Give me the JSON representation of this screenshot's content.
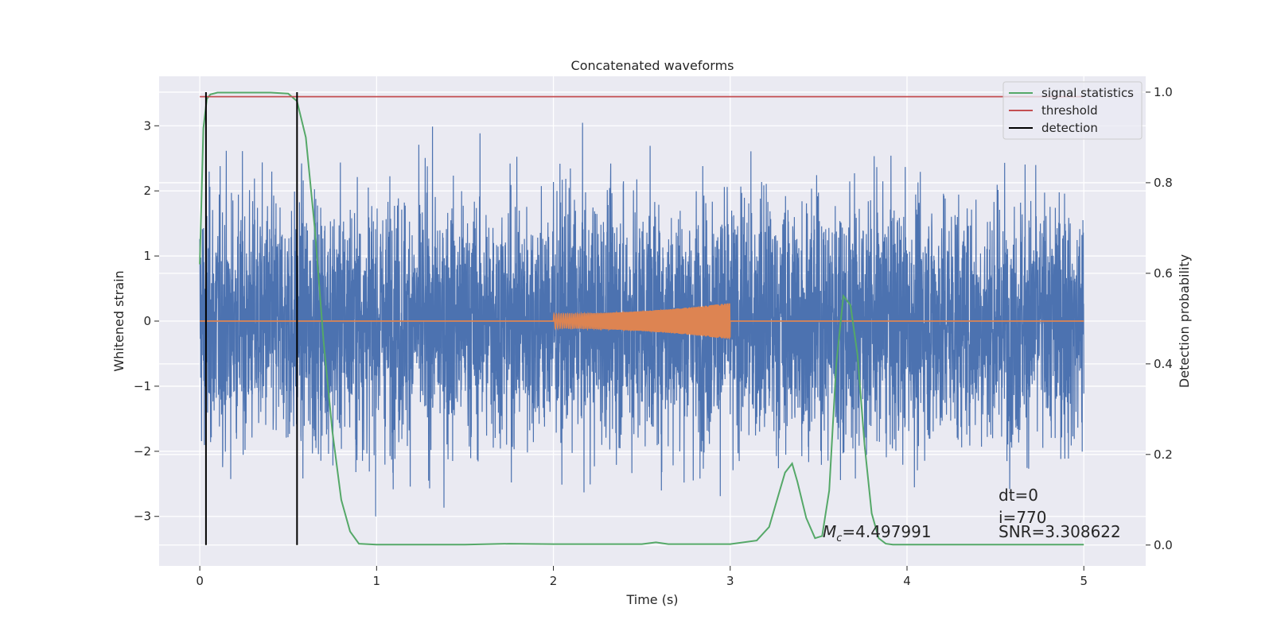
{
  "chart_data": {
    "type": "line",
    "title": "Concatenated waveforms",
    "xlabel": "Time (s)",
    "ylabel_left": "Whitened strain",
    "ylabel_right": "Detection probability",
    "xlim": [
      -0.23,
      5.35
    ],
    "ylim_left": [
      -3.76,
      3.76
    ],
    "ylim_right": [
      -0.046,
      1.035
    ],
    "x_ticks": [
      0,
      1,
      2,
      3,
      4,
      5
    ],
    "y_ticks_left": [
      -3,
      -2,
      -1,
      0,
      1,
      2,
      3
    ],
    "y_ticks_left_labels": [
      "−3",
      "−2",
      "−1",
      "0",
      "1",
      "2",
      "3"
    ],
    "y_ticks_right": [
      0.0,
      0.2,
      0.4,
      0.6,
      0.8,
      1.0
    ],
    "y_ticks_right_labels": [
      "0.0",
      "0.2",
      "0.4",
      "0.6",
      "0.8",
      "1.0"
    ],
    "grid": true,
    "legend_position": "top-right",
    "colors": {
      "strain": "#4c72b0",
      "injection": "#dd8452",
      "signal_statistics": "#55a868",
      "threshold": "#c44e52",
      "detection": "#000000",
      "background": "#eaeaf2",
      "grid": "#ffffff"
    },
    "series": [
      {
        "name": "signal statistics",
        "axis": "right",
        "x": [
          0.0,
          0.02,
          0.04,
          0.06,
          0.1,
          0.2,
          0.3,
          0.4,
          0.5,
          0.55,
          0.6,
          0.65,
          0.7,
          0.75,
          0.8,
          0.85,
          0.9,
          1.0,
          1.5,
          1.75,
          2.0,
          2.5,
          2.58,
          2.65,
          3.0,
          3.15,
          3.22,
          3.28,
          3.31,
          3.35,
          3.38,
          3.43,
          3.48,
          3.52,
          3.56,
          3.6,
          3.64,
          3.68,
          3.72,
          3.76,
          3.8,
          3.84,
          3.88,
          3.92,
          4.0,
          4.5,
          5.0
        ],
        "y": [
          0.62,
          0.92,
          0.985,
          0.995,
          0.999,
          0.999,
          0.999,
          0.999,
          0.997,
          0.98,
          0.9,
          0.7,
          0.45,
          0.25,
          0.1,
          0.03,
          0.003,
          0.001,
          0.001,
          0.003,
          0.002,
          0.002,
          0.006,
          0.002,
          0.002,
          0.01,
          0.04,
          0.12,
          0.16,
          0.18,
          0.14,
          0.06,
          0.015,
          0.02,
          0.12,
          0.4,
          0.55,
          0.53,
          0.42,
          0.22,
          0.07,
          0.015,
          0.003,
          0.001,
          0.001,
          0.001,
          0.001
        ]
      },
      {
        "name": "threshold",
        "axis": "right",
        "x": [
          0,
          5
        ],
        "y": [
          0.99,
          0.99
        ]
      },
      {
        "name": "detection",
        "axis": "right",
        "x": [
          0.035,
          0.55
        ],
        "y_range": [
          0.0,
          1.0
        ]
      }
    ],
    "unnamed_series": [
      {
        "role": "whitened strain (noise)",
        "axis": "left",
        "x_range": [
          0,
          5
        ],
        "y_range": [
          -3.4,
          3.4
        ]
      },
      {
        "role": "injected waveform",
        "axis": "left",
        "x_range": [
          2,
          3
        ],
        "y_range": [
          -0.28,
          0.28
        ]
      }
    ],
    "annotations": {
      "mc": "=4.497991",
      "mc_symbol": "M",
      "mc_subscript": "c",
      "dt": "dt=0",
      "i": "i=770",
      "snr": "SNR=3.308622"
    }
  }
}
